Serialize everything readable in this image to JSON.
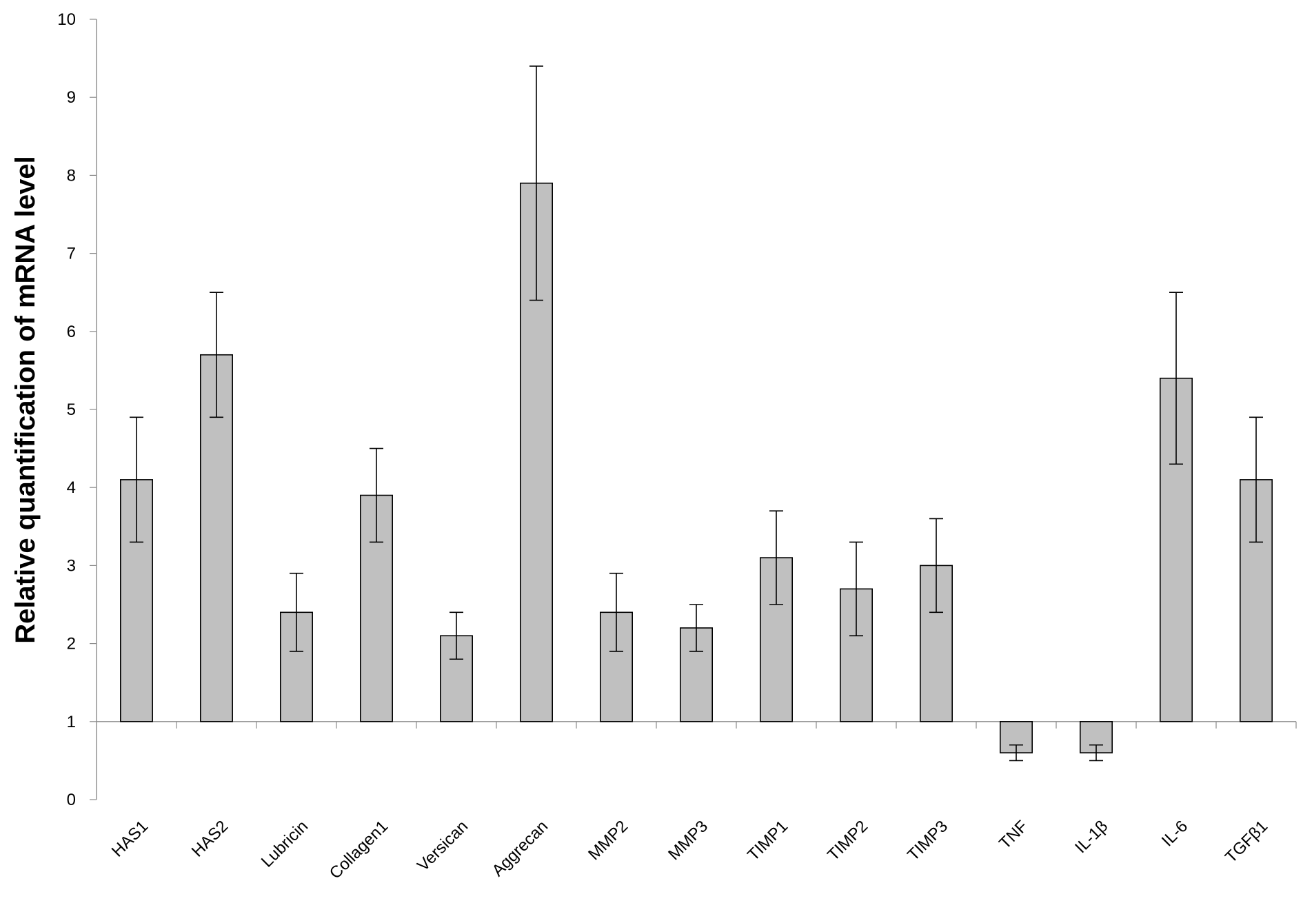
{
  "chart_data": {
    "type": "bar",
    "title": "",
    "xlabel": "",
    "ylabel": "Relative quantification of mRNA level",
    "ylim": [
      0,
      10
    ],
    "yticks": [
      "0",
      "1",
      "2",
      "3",
      "4",
      "5",
      "6",
      "7",
      "8",
      "9",
      "10"
    ],
    "baseline": 1,
    "grid": false,
    "legend": "none",
    "bar_color": "#c0c0c0",
    "categories": [
      "HAS1",
      "HAS2",
      "Lubricin",
      "Collagen1",
      "Versican",
      "Aggrecan",
      "MMP2",
      "MMP3",
      "TIMP1",
      "TIMP2",
      "TIMP3",
      "TNF",
      "IL-1β",
      "IL-6",
      "TGFβ1"
    ],
    "values": [
      4.1,
      5.7,
      2.4,
      3.9,
      2.1,
      7.9,
      2.4,
      2.2,
      3.1,
      2.7,
      3.0,
      0.6,
      0.6,
      5.4,
      4.1
    ],
    "error_low": [
      3.3,
      4.9,
      1.9,
      3.3,
      1.8,
      6.4,
      1.9,
      1.9,
      2.5,
      2.1,
      2.4,
      0.5,
      0.5,
      4.3,
      3.3
    ],
    "error_high": [
      4.9,
      6.5,
      2.9,
      4.5,
      2.4,
      9.4,
      2.9,
      2.5,
      3.7,
      3.3,
      3.6,
      0.7,
      0.7,
      6.5,
      4.9
    ]
  }
}
